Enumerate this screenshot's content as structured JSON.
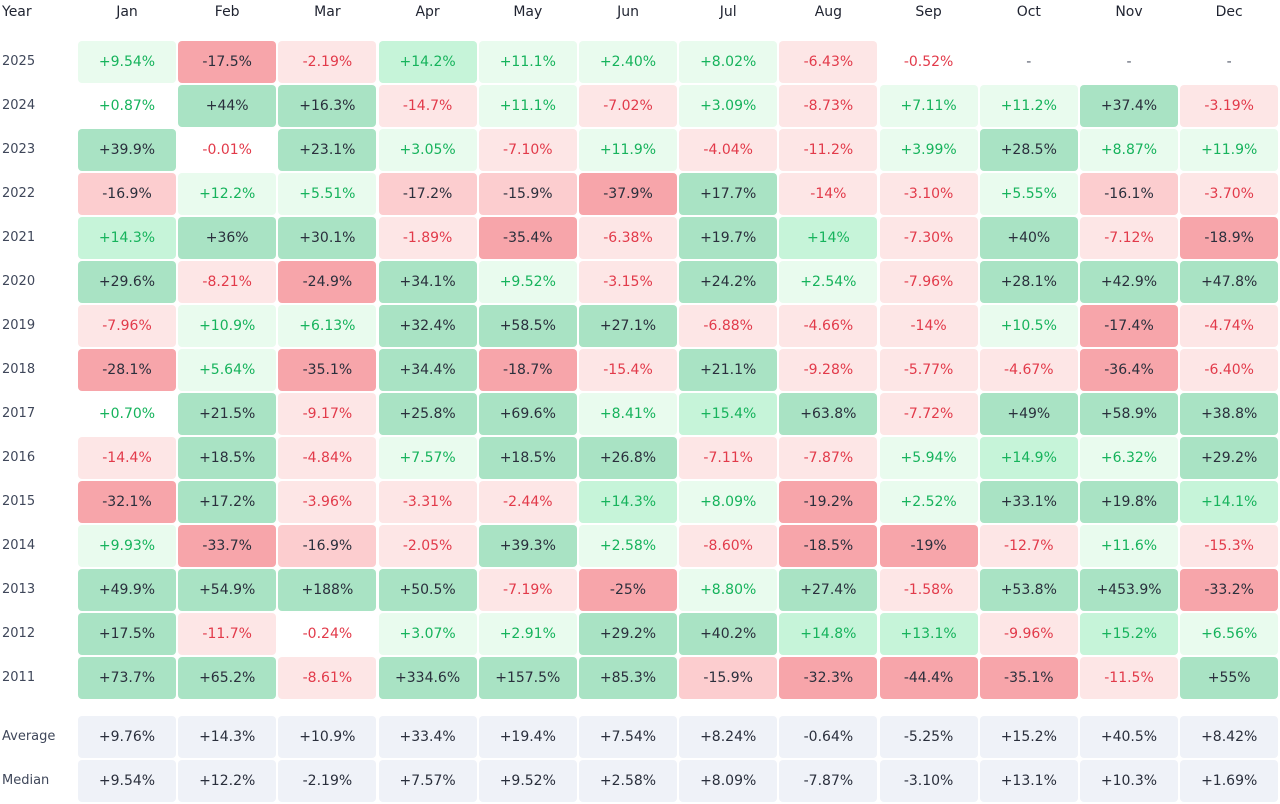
{
  "chart_data": {
    "type": "heatmap",
    "corner_label": "Year",
    "months": [
      "Jan",
      "Feb",
      "Mar",
      "Apr",
      "May",
      "Jun",
      "Jul",
      "Aug",
      "Sep",
      "Oct",
      "Nov",
      "Dec"
    ],
    "rows": [
      {
        "year": "2025",
        "values": [
          "+9.54%",
          "-17.5%",
          "-2.19%",
          "+14.2%",
          "+11.1%",
          "+2.40%",
          "+8.02%",
          "-6.43%",
          "-0.52%",
          "-",
          "-",
          "-"
        ]
      },
      {
        "year": "2024",
        "values": [
          "+0.87%",
          "+44%",
          "+16.3%",
          "-14.7%",
          "+11.1%",
          "-7.02%",
          "+3.09%",
          "-8.73%",
          "+7.11%",
          "+11.2%",
          "+37.4%",
          "-3.19%"
        ]
      },
      {
        "year": "2023",
        "values": [
          "+39.9%",
          "-0.01%",
          "+23.1%",
          "+3.05%",
          "-7.10%",
          "+11.9%",
          "-4.04%",
          "-11.2%",
          "+3.99%",
          "+28.5%",
          "+8.87%",
          "+11.9%"
        ]
      },
      {
        "year": "2022",
        "values": [
          "-16.9%",
          "+12.2%",
          "+5.51%",
          "-17.2%",
          "-15.9%",
          "-37.9%",
          "+17.7%",
          "-14%",
          "-3.10%",
          "+5.55%",
          "-16.1%",
          "-3.70%"
        ]
      },
      {
        "year": "2021",
        "values": [
          "+14.3%",
          "+36%",
          "+30.1%",
          "-1.89%",
          "-35.4%",
          "-6.38%",
          "+19.7%",
          "+14%",
          "-7.30%",
          "+40%",
          "-7.12%",
          "-18.9%"
        ]
      },
      {
        "year": "2020",
        "values": [
          "+29.6%",
          "-8.21%",
          "-24.9%",
          "+34.1%",
          "+9.52%",
          "-3.15%",
          "+24.2%",
          "+2.54%",
          "-7.96%",
          "+28.1%",
          "+42.9%",
          "+47.8%"
        ]
      },
      {
        "year": "2019",
        "values": [
          "-7.96%",
          "+10.9%",
          "+6.13%",
          "+32.4%",
          "+58.5%",
          "+27.1%",
          "-6.88%",
          "-4.66%",
          "-14%",
          "+10.5%",
          "-17.4%",
          "-4.74%"
        ]
      },
      {
        "year": "2018",
        "values": [
          "-28.1%",
          "+5.64%",
          "-35.1%",
          "+34.4%",
          "-18.7%",
          "-15.4%",
          "+21.1%",
          "-9.28%",
          "-5.77%",
          "-4.67%",
          "-36.4%",
          "-6.40%"
        ]
      },
      {
        "year": "2017",
        "values": [
          "+0.70%",
          "+21.5%",
          "-9.17%",
          "+25.8%",
          "+69.6%",
          "+8.41%",
          "+15.4%",
          "+63.8%",
          "-7.72%",
          "+49%",
          "+58.9%",
          "+38.8%"
        ]
      },
      {
        "year": "2016",
        "values": [
          "-14.4%",
          "+18.5%",
          "-4.84%",
          "+7.57%",
          "+18.5%",
          "+26.8%",
          "-7.11%",
          "-7.87%",
          "+5.94%",
          "+14.9%",
          "+6.32%",
          "+29.2%"
        ]
      },
      {
        "year": "2015",
        "values": [
          "-32.1%",
          "+17.2%",
          "-3.96%",
          "-3.31%",
          "-2.44%",
          "+14.3%",
          "+8.09%",
          "-19.2%",
          "+2.52%",
          "+33.1%",
          "+19.8%",
          "+14.1%"
        ]
      },
      {
        "year": "2014",
        "values": [
          "+9.93%",
          "-33.7%",
          "-16.9%",
          "-2.05%",
          "+39.3%",
          "+2.58%",
          "-8.60%",
          "-18.5%",
          "-19%",
          "-12.7%",
          "+11.6%",
          "-15.3%"
        ]
      },
      {
        "year": "2013",
        "values": [
          "+49.9%",
          "+54.9%",
          "+188%",
          "+50.5%",
          "-7.19%",
          "-25%",
          "+8.80%",
          "+27.4%",
          "-1.58%",
          "+53.8%",
          "+453.9%",
          "-33.2%"
        ]
      },
      {
        "year": "2012",
        "values": [
          "+17.5%",
          "-11.7%",
          "-0.24%",
          "+3.07%",
          "+2.91%",
          "+29.2%",
          "+40.2%",
          "+14.8%",
          "+13.1%",
          "-9.96%",
          "+15.2%",
          "+6.56%"
        ]
      },
      {
        "year": "2011",
        "values": [
          "+73.7%",
          "+65.2%",
          "-8.61%",
          "+334.6%",
          "+157.5%",
          "+85.3%",
          "-15.9%",
          "-32.3%",
          "-44.4%",
          "-35.1%",
          "-11.5%",
          "+55%"
        ]
      }
    ],
    "summary": [
      {
        "label": "Average",
        "values": [
          "+9.76%",
          "+14.3%",
          "+10.9%",
          "+33.4%",
          "+19.4%",
          "+7.54%",
          "+8.24%",
          "-0.64%",
          "-5.25%",
          "+15.2%",
          "+40.5%",
          "+8.42%"
        ]
      },
      {
        "label": "Median",
        "values": [
          "+9.54%",
          "+12.2%",
          "-2.19%",
          "+7.57%",
          "+9.52%",
          "+2.58%",
          "+8.09%",
          "-7.87%",
          "-3.10%",
          "+13.1%",
          "+10.3%",
          "+1.69%"
        ]
      }
    ],
    "colors": {
      "pos_light": "#e9fbee",
      "pos_mid": "#c6f4d9",
      "pos_strong": "#a9e3c4",
      "neg_light": "#fde6e6",
      "neg_mid": "#fccdcf",
      "neg_strong": "#f7a5aa",
      "pos_text": "#16b35c",
      "neg_text": "#e23a4a",
      "dark_text": "#2a2f3c",
      "summary_bg": "#eff2f8",
      "summary_text": "#2a2f3c"
    }
  }
}
